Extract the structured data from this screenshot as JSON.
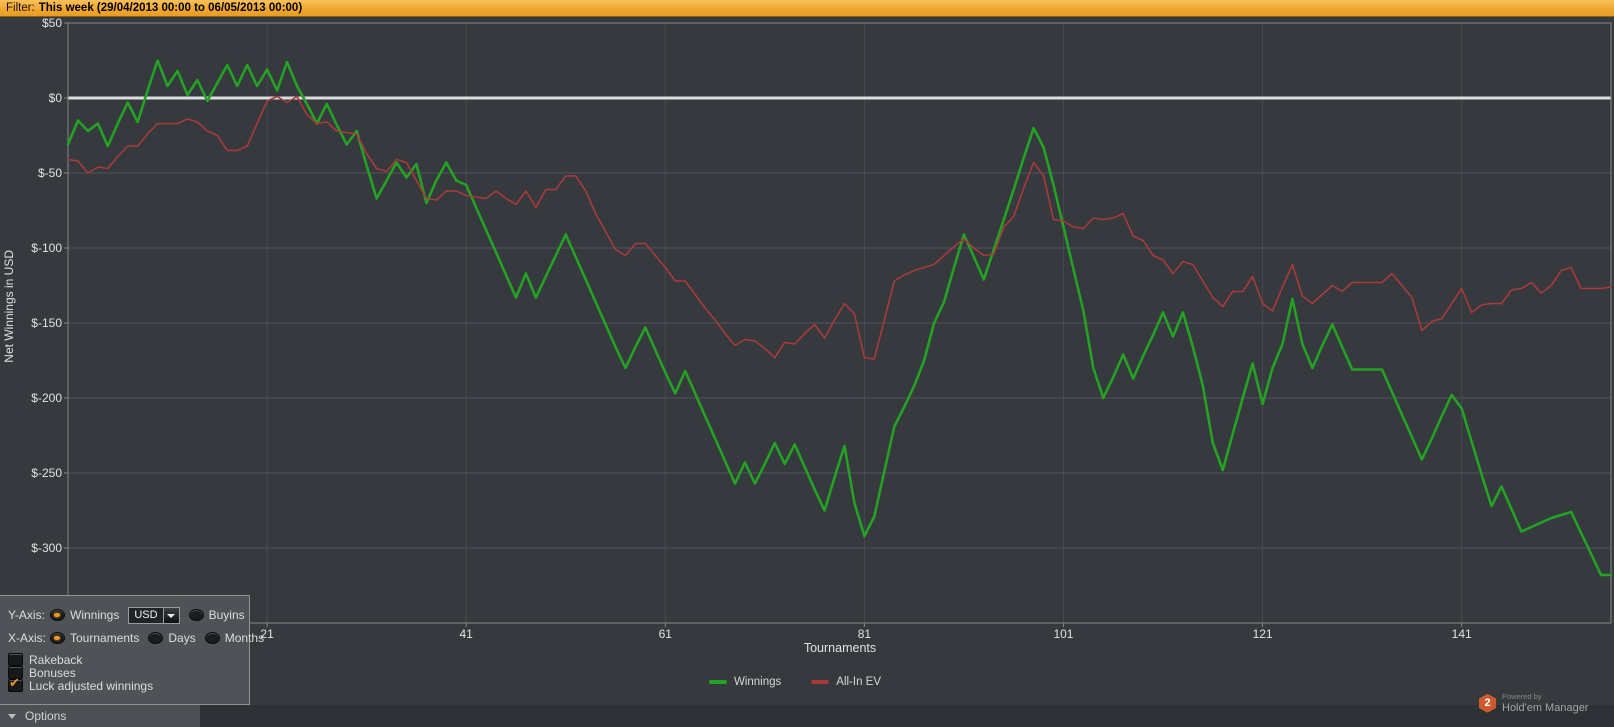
{
  "filter_bar": {
    "label": "Filter:",
    "value": "This week (29/04/2013 00:00 to 06/05/2013 00:00)"
  },
  "chart_data": {
    "type": "line",
    "title": "",
    "xlabel": "Tournaments",
    "ylabel": "Net Winnings in USD",
    "xlim": [
      1,
      156
    ],
    "ylim": [
      -350,
      50
    ],
    "x_ticks": [
      21,
      41,
      61,
      81,
      101,
      121,
      141
    ],
    "y_ticks": [
      50,
      0,
      -50,
      -100,
      -150,
      -200,
      -250,
      -300
    ],
    "y_tick_labels": [
      "$50",
      "$0",
      "$-50",
      "$-100",
      "$-150",
      "$-200",
      "$-250",
      "$-300"
    ],
    "grid": true,
    "legend_position": "bottom",
    "series": [
      {
        "name": "Winnings",
        "color": "#23a223",
        "values": [
          -31,
          -15,
          -22,
          -17,
          -32,
          -17,
          -3,
          -16,
          5,
          25,
          8,
          18,
          2,
          12,
          -2,
          10,
          22,
          8,
          22,
          8,
          19,
          5,
          24,
          8,
          -4,
          -17,
          -4,
          -18,
          -31,
          -22,
          -45,
          -67,
          -55,
          -43,
          -53,
          -44,
          -70,
          -55,
          -43,
          -55,
          -58,
          -73,
          -88,
          -103,
          -118,
          -133,
          -117,
          -133,
          -119,
          -105,
          -91,
          -106,
          -121,
          -136,
          -151,
          -166,
          -180,
          -166,
          -153,
          -168,
          -183,
          -197,
          -182,
          -197,
          -212,
          -227,
          -242,
          -257,
          -243,
          -257,
          -244,
          -230,
          -244,
          -231,
          -246,
          -261,
          -275,
          -253,
          -232,
          -270,
          -292,
          -279,
          -249,
          -219,
          -206,
          -192,
          -175,
          -150,
          -136,
          -113,
          -91,
          -106,
          -121,
          -101,
          -81,
          -61,
          -40,
          -20,
          -33,
          -58,
          -86,
          -114,
          -142,
          -180,
          -200,
          -186,
          -171,
          -187,
          -172,
          -158,
          -143,
          -159,
          -143,
          -166,
          -192,
          -230,
          -248,
          -224,
          -200,
          -177,
          -204,
          -180,
          -164,
          -134,
          -164,
          -180,
          -165,
          -151,
          -166,
          -181,
          -181,
          -181,
          -181,
          -196,
          -211,
          -226,
          -241,
          -227,
          -212,
          -198,
          -207,
          -229,
          -251,
          -272,
          -259,
          -274,
          -289,
          -286,
          -283,
          -280,
          -278,
          -276,
          -290,
          -304,
          -318,
          -318
        ]
      },
      {
        "name": "All-In EV",
        "color": "#a83a3a",
        "values": [
          -41,
          -42,
          -50,
          -46,
          -47,
          -39,
          -32,
          -32,
          -24,
          -17,
          -17,
          -17,
          -14,
          -16,
          -22,
          -25,
          -35,
          -35,
          -32,
          -17,
          -2,
          1,
          -3,
          1,
          -11,
          -17,
          -16,
          -22,
          -23,
          -24,
          -37,
          -47,
          -49,
          -41,
          -43,
          -55,
          -67,
          -68,
          -62,
          -62,
          -65,
          -66,
          -67,
          -62,
          -67,
          -71,
          -62,
          -73,
          -61,
          -61,
          -52,
          -52,
          -62,
          -77,
          -89,
          -101,
          -105,
          -97,
          -97,
          -105,
          -113,
          -122,
          -122,
          -131,
          -140,
          -148,
          -157,
          -165,
          -161,
          -162,
          -167,
          -173,
          -163,
          -164,
          -157,
          -151,
          -160,
          -148,
          -137,
          -144,
          -173,
          -174,
          -148,
          -122,
          -118,
          -115,
          -113,
          -111,
          -105,
          -99,
          -94,
          -100,
          -105,
          -104,
          -86,
          -79,
          -60,
          -43,
          -52,
          -81,
          -82,
          -86,
          -87,
          -80,
          -81,
          -80,
          -77,
          -92,
          -95,
          -105,
          -108,
          -117,
          -109,
          -111,
          -122,
          -133,
          -139,
          -129,
          -129,
          -119,
          -137,
          -142,
          -126,
          -111,
          -132,
          -137,
          -131,
          -125,
          -129,
          -123,
          -123,
          -123,
          -123,
          -117,
          -125,
          -133,
          -155,
          -149,
          -147,
          -137,
          -127,
          -143,
          -138,
          -137,
          -137,
          -128,
          -127,
          -123,
          -130,
          -125,
          -115,
          -113,
          -127,
          -127,
          -127,
          -126
        ]
      }
    ]
  },
  "axis_panel": {
    "y_axis_label": "Y-Axis:",
    "y_options": [
      {
        "label": "Winnings",
        "selected": true
      },
      {
        "label": "Buyins",
        "selected": false
      }
    ],
    "currency_select": {
      "value": "USD"
    },
    "x_axis_label": "X-Axis:",
    "x_options": [
      {
        "label": "Tournaments",
        "selected": true
      },
      {
        "label": "Days",
        "selected": false
      },
      {
        "label": "Months",
        "selected": false
      }
    ],
    "checkboxes": [
      {
        "label": "Rakeback",
        "checked": false
      },
      {
        "label": "Bonuses",
        "checked": false
      },
      {
        "label": "Luck adjusted winnings",
        "checked": true
      }
    ]
  },
  "bottom_bar": {
    "options_label": "Options"
  },
  "branding": {
    "powered_by": "Powered by",
    "app_name": "Hold'em Manager",
    "logo_number": "2"
  },
  "colors": {
    "winnings_line": "#23a223",
    "allin_ev_line": "#a83a3a",
    "zero_line": "#dcdddf",
    "h_gridline": "#50545a",
    "v_gridline": "#474a4e",
    "plot_frame": "#85888c",
    "accent_orange": "#ef9320",
    "filter_bar_orange": "#efa62f"
  }
}
